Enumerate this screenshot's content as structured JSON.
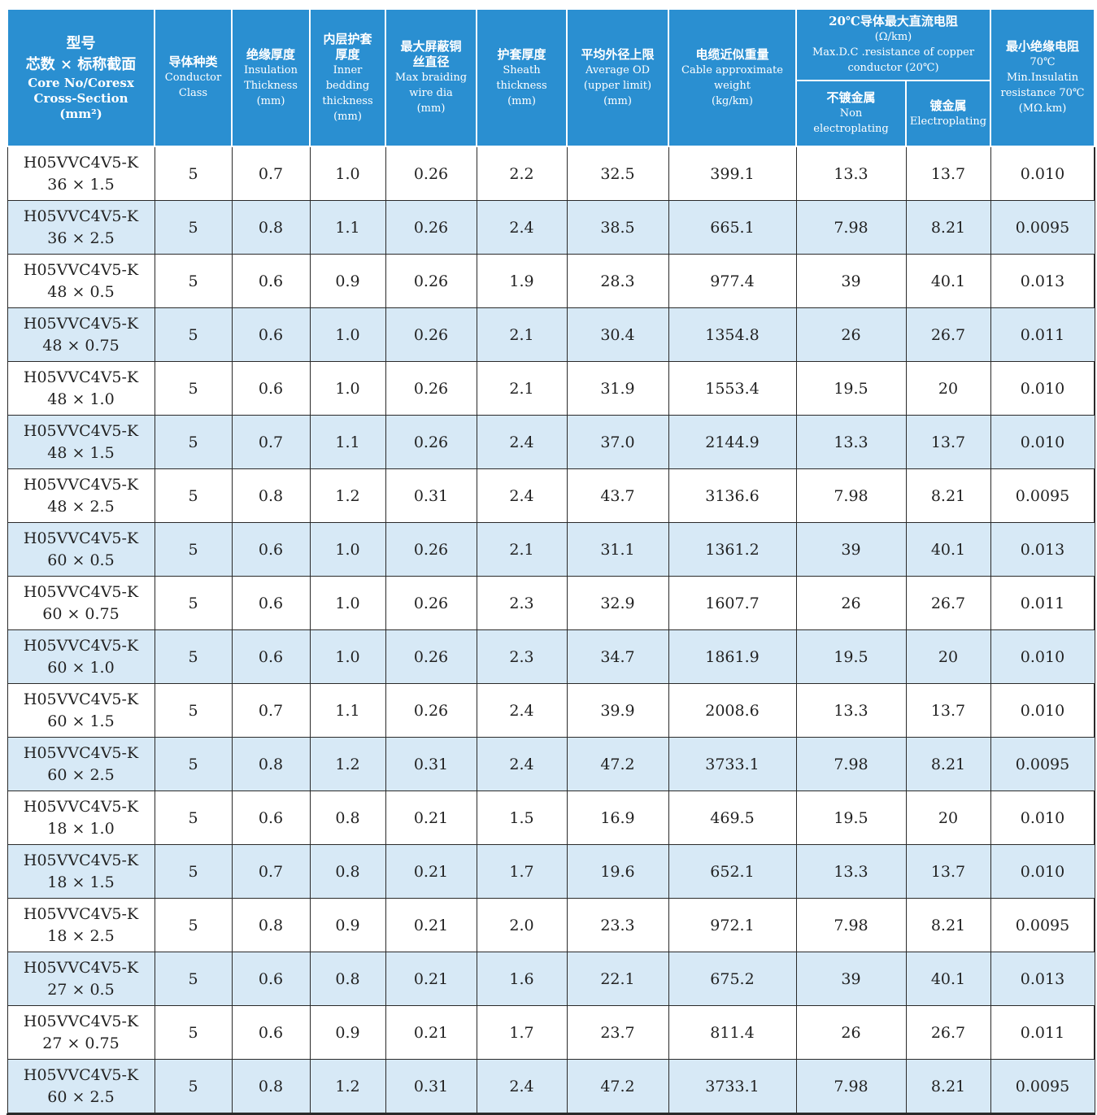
{
  "header": {
    "model": [
      "型号",
      "芯数 × 标称截面",
      "Core No/Coresx",
      "Cross-Section",
      "(mm²)"
    ],
    "conductor_class": [
      "导体种类",
      "Conductor",
      "Class"
    ],
    "insulation": [
      "绝缘厚度",
      "Insulation",
      "Thickness",
      "(mm)"
    ],
    "inner_bedding": [
      "内层护套",
      "厚度",
      "Inner",
      "bedding",
      "thickness",
      "(mm)"
    ],
    "braiding": [
      "最大屏蔽铜",
      "丝直径",
      "Max braiding",
      "wire dia",
      "(mm)"
    ],
    "sheath": [
      "护套厚度",
      "Sheath",
      "thickness",
      "(mm)"
    ],
    "avg_od": [
      "平均外径上限",
      "Average OD",
      "(upper limit)",
      "(mm)"
    ],
    "weight": [
      "电缆近似重量",
      "Cable approximate",
      "weight",
      "(kg/km)"
    ],
    "resistance": [
      "20℃导体最大直流电阻",
      "(Ω/km)",
      "Max.D.C .resistance of copper",
      "conductor (20℃)"
    ],
    "non_plated": [
      "不镀金属",
      "Non",
      "electroplating"
    ],
    "plated": [
      "镀金属",
      "Electroplating"
    ],
    "insulation_resistance": [
      "最小绝缘电阻",
      "70℃",
      "Min.Insulatin",
      "resistance 70℃",
      "(MΩ.km)"
    ]
  },
  "rows": [
    {
      "model": "H05VVC4V5-K",
      "size": "36 × 1.5",
      "cls": "5",
      "ins": "0.7",
      "inner": "1.0",
      "braid": "0.26",
      "sheath": "2.2",
      "od": "32.5",
      "weight": "399.1",
      "r1": "13.3",
      "r2": "13.7",
      "ir": "0.010"
    },
    {
      "model": "H05VVC4V5-K",
      "size": "36 × 2.5",
      "cls": "5",
      "ins": "0.8",
      "inner": "1.1",
      "braid": "0.26",
      "sheath": "2.4",
      "od": "38.5",
      "weight": "665.1",
      "r1": "7.98",
      "r2": "8.21",
      "ir": "0.0095"
    },
    {
      "model": "H05VVC4V5-K",
      "size": "48 × 0.5",
      "cls": "5",
      "ins": "0.6",
      "inner": "0.9",
      "braid": "0.26",
      "sheath": "1.9",
      "od": "28.3",
      "weight": "977.4",
      "r1": "39",
      "r2": "40.1",
      "ir": "0.013"
    },
    {
      "model": "H05VVC4V5-K",
      "size": "48 × 0.75",
      "cls": "5",
      "ins": "0.6",
      "inner": "1.0",
      "braid": "0.26",
      "sheath": "2.1",
      "od": "30.4",
      "weight": "1354.8",
      "r1": "26",
      "r2": "26.7",
      "ir": "0.011"
    },
    {
      "model": "H05VVC4V5-K",
      "size": "48 × 1.0",
      "cls": "5",
      "ins": "0.6",
      "inner": "1.0",
      "braid": "0.26",
      "sheath": "2.1",
      "od": "31.9",
      "weight": "1553.4",
      "r1": "19.5",
      "r2": "20",
      "ir": "0.010"
    },
    {
      "model": "H05VVC4V5-K",
      "size": "48 × 1.5",
      "cls": "5",
      "ins": "0.7",
      "inner": "1.1",
      "braid": "0.26",
      "sheath": "2.4",
      "od": "37.0",
      "weight": "2144.9",
      "r1": "13.3",
      "r2": "13.7",
      "ir": "0.010"
    },
    {
      "model": "H05VVC4V5-K",
      "size": "48 × 2.5",
      "cls": "5",
      "ins": "0.8",
      "inner": "1.2",
      "braid": "0.31",
      "sheath": "2.4",
      "od": "43.7",
      "weight": "3136.6",
      "r1": "7.98",
      "r2": "8.21",
      "ir": "0.0095"
    },
    {
      "model": "H05VVC4V5-K",
      "size": "60 × 0.5",
      "cls": "5",
      "ins": "0.6",
      "inner": "1.0",
      "braid": "0.26",
      "sheath": "2.1",
      "od": "31.1",
      "weight": "1361.2",
      "r1": "39",
      "r2": "40.1",
      "ir": "0.013"
    },
    {
      "model": "H05VVC4V5-K",
      "size": "60 × 0.75",
      "cls": "5",
      "ins": "0.6",
      "inner": "1.0",
      "braid": "0.26",
      "sheath": "2.3",
      "od": "32.9",
      "weight": "1607.7",
      "r1": "26",
      "r2": "26.7",
      "ir": "0.011"
    },
    {
      "model": "H05VVC4V5-K",
      "size": "60 × 1.0",
      "cls": "5",
      "ins": "0.6",
      "inner": "1.0",
      "braid": "0.26",
      "sheath": "2.3",
      "od": "34.7",
      "weight": "1861.9",
      "r1": "19.5",
      "r2": "20",
      "ir": "0.010"
    },
    {
      "model": "H05VVC4V5-K",
      "size": "60 × 1.5",
      "cls": "5",
      "ins": "0.7",
      "inner": "1.1",
      "braid": "0.26",
      "sheath": "2.4",
      "od": "39.9",
      "weight": "2008.6",
      "r1": "13.3",
      "r2": "13.7",
      "ir": "0.010"
    },
    {
      "model": "H05VVC4V5-K",
      "size": "60 × 2.5",
      "cls": "5",
      "ins": "0.8",
      "inner": "1.2",
      "braid": "0.31",
      "sheath": "2.4",
      "od": "47.2",
      "weight": "3733.1",
      "r1": "7.98",
      "r2": "8.21",
      "ir": "0.0095"
    },
    {
      "model": "H05VVC4V5-K",
      "size": "18 × 1.0",
      "cls": "5",
      "ins": "0.6",
      "inner": "0.8",
      "braid": "0.21",
      "sheath": "1.5",
      "od": "16.9",
      "weight": "469.5",
      "r1": "19.5",
      "r2": "20",
      "ir": "0.010"
    },
    {
      "model": "H05VVC4V5-K",
      "size": "18 × 1.5",
      "cls": "5",
      "ins": "0.7",
      "inner": "0.8",
      "braid": "0.21",
      "sheath": "1.7",
      "od": "19.6",
      "weight": "652.1",
      "r1": "13.3",
      "r2": "13.7",
      "ir": "0.010"
    },
    {
      "model": "H05VVC4V5-K",
      "size": "18 × 2.5",
      "cls": "5",
      "ins": "0.8",
      "inner": "0.9",
      "braid": "0.21",
      "sheath": "2.0",
      "od": "23.3",
      "weight": "972.1",
      "r1": "7.98",
      "r2": "8.21",
      "ir": "0.0095"
    },
    {
      "model": "H05VVC4V5-K",
      "size": "27 × 0.5",
      "cls": "5",
      "ins": "0.6",
      "inner": "0.8",
      "braid": "0.21",
      "sheath": "1.6",
      "od": "22.1",
      "weight": "675.2",
      "r1": "39",
      "r2": "40.1",
      "ir": "0.013"
    },
    {
      "model": "H05VVC4V5-K",
      "size": "27 × 0.75",
      "cls": "5",
      "ins": "0.6",
      "inner": "0.9",
      "braid": "0.21",
      "sheath": "1.7",
      "od": "23.7",
      "weight": "811.4",
      "r1": "26",
      "r2": "26.7",
      "ir": "0.011"
    },
    {
      "model": "H05VVC4V5-K",
      "size": "60 × 2.5",
      "cls": "5",
      "ins": "0.8",
      "inner": "1.2",
      "braid": "0.31",
      "sheath": "2.4",
      "od": "47.2",
      "weight": "3733.1",
      "r1": "7.98",
      "r2": "8.21",
      "ir": "0.0095"
    }
  ]
}
